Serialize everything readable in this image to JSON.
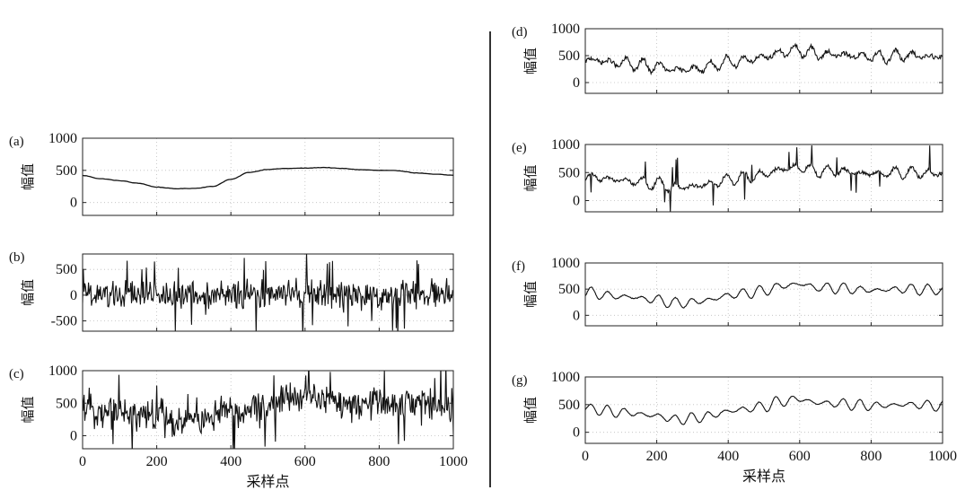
{
  "figure": {
    "x_axis_label": "采样点",
    "y_axis_label": "幅值"
  },
  "colors": {
    "trace": "#111111",
    "grid": "#bdbdbd",
    "axes": "#222222"
  },
  "chart_data": [
    {
      "id": "a",
      "panel_label": "(a)",
      "type": "line",
      "column": "left",
      "ylabel": "幅值",
      "xlabel": "",
      "xlim": [
        0,
        1000
      ],
      "ylim": [
        -200,
        1000
      ],
      "yticks": [
        1000,
        500,
        0
      ],
      "xticks": [],
      "series": [
        {
          "kind": "smooth",
          "x": [
            0,
            50,
            100,
            150,
            200,
            250,
            300,
            350,
            400,
            450,
            500,
            550,
            600,
            650,
            700,
            750,
            800,
            850,
            900,
            950,
            1000
          ],
          "values": [
            420,
            370,
            340,
            300,
            240,
            215,
            220,
            250,
            360,
            470,
            515,
            530,
            535,
            545,
            530,
            510,
            500,
            495,
            460,
            440,
            425
          ]
        }
      ]
    },
    {
      "id": "b",
      "panel_label": "(b)",
      "type": "line",
      "column": "left",
      "ylabel": "幅值",
      "xlabel": "",
      "xlim": [
        0,
        1000
      ],
      "ylim": [
        -700,
        800
      ],
      "yticks": [
        500,
        0,
        -500
      ],
      "xticks": [],
      "series": [
        {
          "kind": "noise",
          "center": 0,
          "amplitude": 300,
          "spike": 700
        }
      ]
    },
    {
      "id": "c",
      "panel_label": "(c)",
      "type": "line",
      "column": "left",
      "ylabel": "幅值",
      "xlabel": "采样点",
      "xlim": [
        0,
        1000
      ],
      "ylim": [
        -200,
        1000
      ],
      "yticks": [
        1000,
        500,
        0
      ],
      "xticks": [
        0,
        200,
        400,
        600,
        800,
        1000
      ],
      "series": [
        {
          "kind": "noise_on_trend",
          "amplitude": 280,
          "spike": 550
        }
      ]
    },
    {
      "id": "d",
      "panel_label": "(d)",
      "type": "line",
      "column": "right",
      "ylabel": "幅值",
      "xlabel": "",
      "xlim": [
        0,
        1000
      ],
      "ylim": [
        -200,
        1000
      ],
      "yticks": [
        1000,
        500,
        0
      ],
      "xticks": [],
      "series": [
        {
          "kind": "wavy",
          "amplitude": 120,
          "jitter": 40
        }
      ]
    },
    {
      "id": "e",
      "panel_label": "(e)",
      "type": "line",
      "column": "right",
      "ylabel": "幅值",
      "xlabel": "",
      "xlim": [
        0,
        1000
      ],
      "ylim": [
        -200,
        1000
      ],
      "yticks": [
        1000,
        500,
        0
      ],
      "xticks": [],
      "series": [
        {
          "kind": "wavy_spiky",
          "amplitude": 110,
          "jitter": 30,
          "spike": 500
        }
      ]
    },
    {
      "id": "f",
      "panel_label": "(f)",
      "type": "line",
      "column": "right",
      "ylabel": "幅值",
      "xlabel": "",
      "xlim": [
        0,
        1000
      ],
      "ylim": [
        -200,
        1000
      ],
      "yticks": [
        1000,
        500,
        0
      ],
      "xticks": [],
      "series": [
        {
          "kind": "wavy",
          "amplitude": 110,
          "jitter": 8
        }
      ]
    },
    {
      "id": "g",
      "panel_label": "(g)",
      "type": "line",
      "column": "right",
      "ylabel": "幅值",
      "xlabel": "采样点",
      "xlim": [
        0,
        1000
      ],
      "ylim": [
        -200,
        1000
      ],
      "yticks": [
        1000,
        500,
        0
      ],
      "xticks": [
        0,
        200,
        400,
        600,
        800,
        1000
      ],
      "series": [
        {
          "kind": "wavy",
          "amplitude": 105,
          "jitter": 6
        }
      ]
    }
  ]
}
